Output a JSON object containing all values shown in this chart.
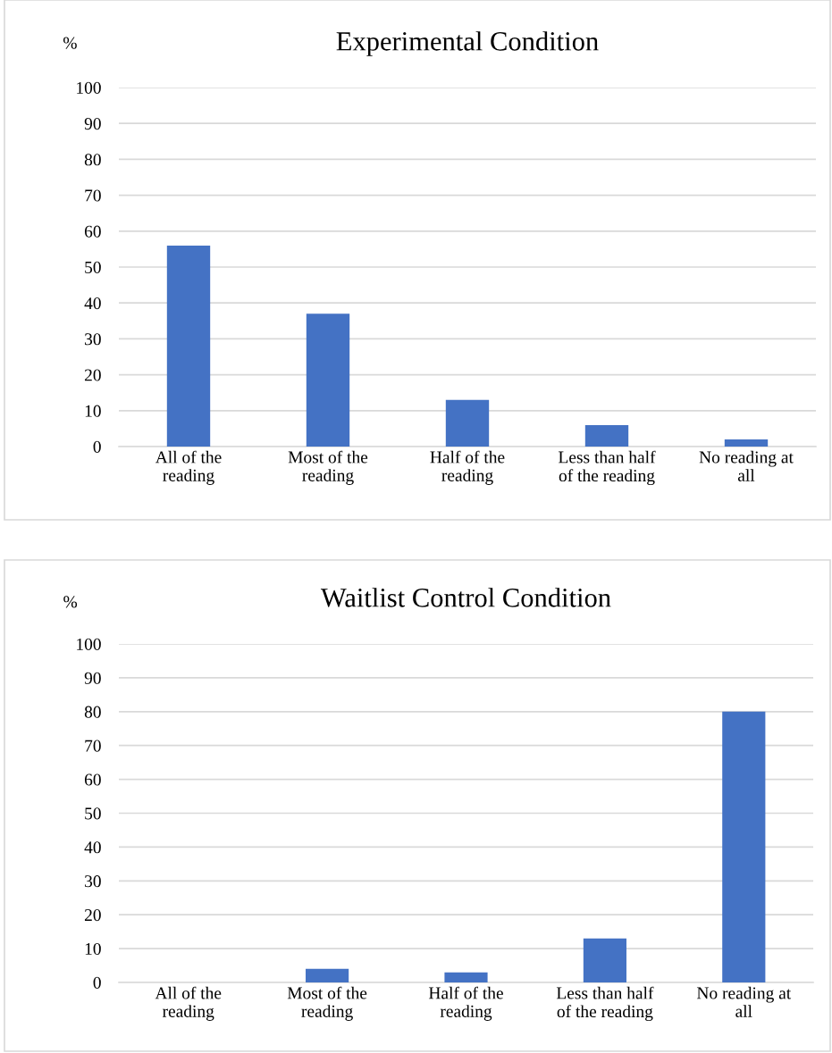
{
  "chart_data": [
    {
      "type": "bar",
      "title": "Experimental Condition",
      "ylabel": "%",
      "categories": [
        "All of the\nreading",
        "Most of the\nreading",
        "Half of the\nreading",
        "Less than half\nof the reading",
        "No reading at\nall"
      ],
      "values": [
        56,
        37,
        13,
        6,
        2
      ],
      "color": "#4472c4",
      "ylim": [
        0,
        100
      ],
      "yticks": [
        0,
        10,
        20,
        30,
        40,
        50,
        60,
        70,
        80,
        90,
        100
      ],
      "grid": "y",
      "legend": false
    },
    {
      "type": "bar",
      "title": "Waitlist Control Condition",
      "ylabel": "%",
      "categories": [
        "All of the\nreading",
        "Most of the\nreading",
        "Half of the\nreading",
        "Less than half\nof the reading",
        "No reading at\nall"
      ],
      "values": [
        0,
        4,
        3,
        13,
        80
      ],
      "color": "#4472c4",
      "ylim": [
        0,
        100
      ],
      "yticks": [
        0,
        10,
        20,
        30,
        40,
        50,
        60,
        70,
        80,
        90,
        100
      ],
      "grid": "y",
      "legend": false
    }
  ]
}
